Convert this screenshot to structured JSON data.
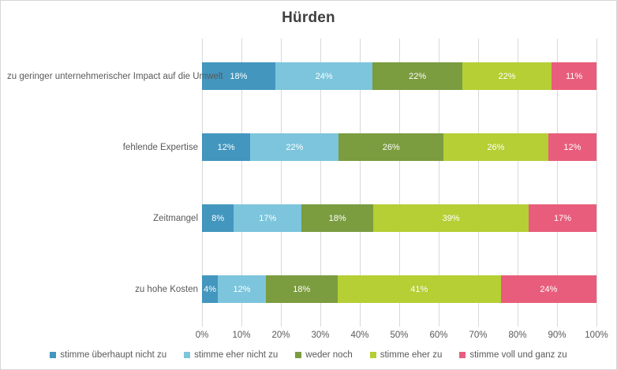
{
  "chart_data": {
    "type": "bar",
    "variant": "stacked-100",
    "orientation": "horizontal",
    "title": "Hürden",
    "categories": [
      "zu geringer unternehmerischer Impact auf die Umwelt",
      "fehlende Expertise",
      "Zeitmangel",
      "zu hohe Kosten"
    ],
    "series": [
      {
        "name": "stimme überhaupt nicht zu",
        "color": "#4396be",
        "values": [
          18,
          12,
          8,
          4
        ]
      },
      {
        "name": "stimme eher nicht zu",
        "color": "#7cc5dc",
        "values": [
          24,
          22,
          17,
          12
        ]
      },
      {
        "name": "weder noch",
        "color": "#7b9c3f",
        "values": [
          22,
          26,
          18,
          18
        ]
      },
      {
        "name": "stimme eher zu",
        "color": "#b5cf34",
        "values": [
          22,
          26,
          39,
          41
        ]
      },
      {
        "name": "stimme voll und ganz zu",
        "color": "#e85d7b",
        "values": [
          11,
          12,
          17,
          24
        ]
      }
    ],
    "data_label_suffix": "%",
    "x_ticks": [
      "0%",
      "10%",
      "20%",
      "30%",
      "40%",
      "50%",
      "60%",
      "70%",
      "80%",
      "90%",
      "100%"
    ],
    "xlim": [
      0,
      100
    ],
    "grid": true,
    "gridline_color": "#d9d9d9",
    "legend_position": "bottom",
    "text_color": "#595959",
    "title_color": "#3f3f3f"
  }
}
